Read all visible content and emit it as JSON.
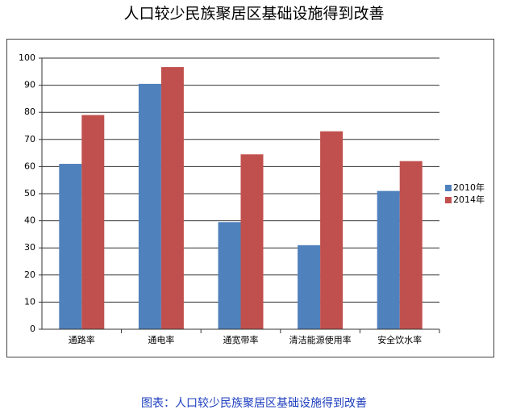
{
  "chart_data": {
    "type": "bar",
    "title": "人口较少民族聚居区基础设施得到改善",
    "caption": "图表：人口较少民族聚居区基础设施得到改善",
    "categories": [
      "通路率",
      "通电率",
      "通宽带率",
      "清洁能源使用率",
      "安全饮水率"
    ],
    "series": [
      {
        "name": "2010年",
        "color": "#4f81bd",
        "values": [
          61,
          90.5,
          39.5,
          31,
          51
        ]
      },
      {
        "name": "2014年",
        "color": "#c0504d",
        "values": [
          79,
          96.7,
          64.5,
          73,
          62
        ]
      }
    ],
    "ylim": [
      0,
      100
    ],
    "yticks": [
      0,
      10,
      20,
      30,
      40,
      50,
      60,
      70,
      80,
      90,
      100
    ],
    "grid": true
  }
}
